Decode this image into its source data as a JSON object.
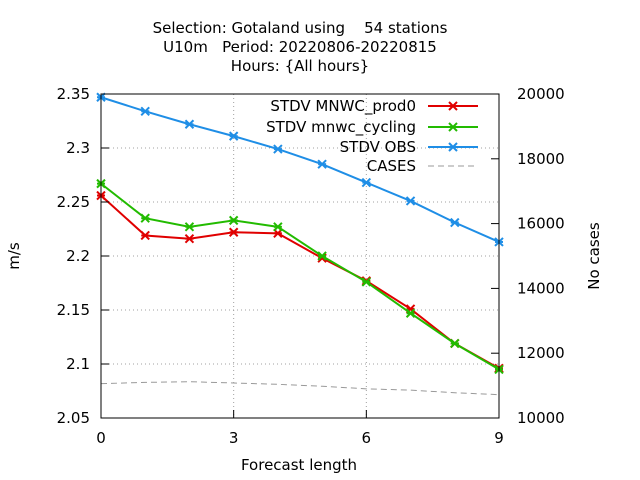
{
  "chart_data": {
    "type": "line",
    "title_lines": [
      "Selection: Gotaland using    54 stations",
      "U10m   Period: 20220806-20220815",
      "Hours: {All hours}"
    ],
    "xlabel": "Forecast length",
    "ylabel": "m/s",
    "y2label": "No cases",
    "xlim": [
      0,
      9
    ],
    "ylim": [
      2.05,
      2.35
    ],
    "y2lim": [
      10000,
      20000
    ],
    "x_ticks": [
      0,
      3,
      6,
      9
    ],
    "y_ticks": [
      2.05,
      2.1,
      2.15,
      2.2,
      2.25,
      2.3,
      2.35
    ],
    "y_tick_labels": [
      "2.05",
      "2.1",
      "2.15",
      "2.2",
      "2.25",
      "2.3",
      "2.35"
    ],
    "y2_ticks": [
      10000,
      12000,
      14000,
      16000,
      18000,
      20000
    ],
    "grid": true,
    "legend_position": "top-right",
    "x": [
      0,
      1,
      2,
      3,
      4,
      5,
      6,
      7,
      8,
      9
    ],
    "series": [
      {
        "name": "STDV MNWC_prod0",
        "color": "#e00000",
        "axis": "y",
        "marker": "x-star",
        "values": [
          2.256,
          2.219,
          2.216,
          2.222,
          2.221,
          2.198,
          2.177,
          2.151,
          2.119,
          2.096
        ]
      },
      {
        "name": "STDV mnwc_cycling",
        "color": "#22bb00",
        "axis": "y",
        "marker": "x-star",
        "values": [
          2.267,
          2.235,
          2.227,
          2.233,
          2.227,
          2.2,
          2.176,
          2.147,
          2.119,
          2.095
        ]
      },
      {
        "name": "STDV OBS",
        "color": "#1f8ee6",
        "axis": "y",
        "marker": "x-star",
        "values": [
          2.347,
          2.334,
          2.322,
          2.311,
          2.299,
          2.285,
          2.268,
          2.251,
          2.231,
          2.213
        ]
      },
      {
        "name": "CASES",
        "color": "#999999",
        "axis": "y2",
        "marker": "none",
        "dashed": true,
        "values": [
          11060,
          11100,
          11120,
          11080,
          11040,
          10980,
          10900,
          10860,
          10780,
          10720
        ]
      }
    ]
  }
}
